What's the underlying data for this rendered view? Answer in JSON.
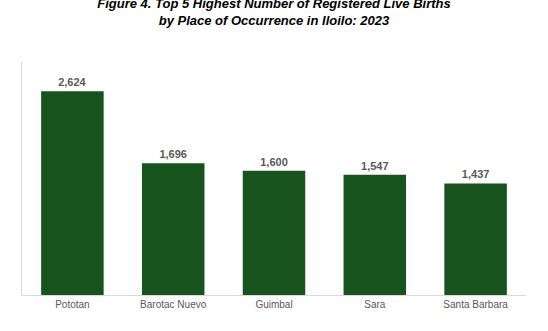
{
  "chart_data": {
    "type": "bar",
    "title": "Figure 4. Top 5 Highest Number of Registered Live Births\nby Place of Occurrence in Iloilo: 2023",
    "categories": [
      "Pototan",
      "Barotac Nuevo",
      "Guimbal",
      "Sara",
      "Santa Barbara"
    ],
    "values": [
      2624,
      1696,
      1600,
      1547,
      1437
    ],
    "value_labels": [
      "2,624",
      "1,696",
      "1,600",
      "1,547",
      "1,437"
    ],
    "color": "#17531c",
    "ylim": [
      0,
      3000
    ],
    "grid": false,
    "data_labels": true,
    "tick_labels": "x"
  }
}
